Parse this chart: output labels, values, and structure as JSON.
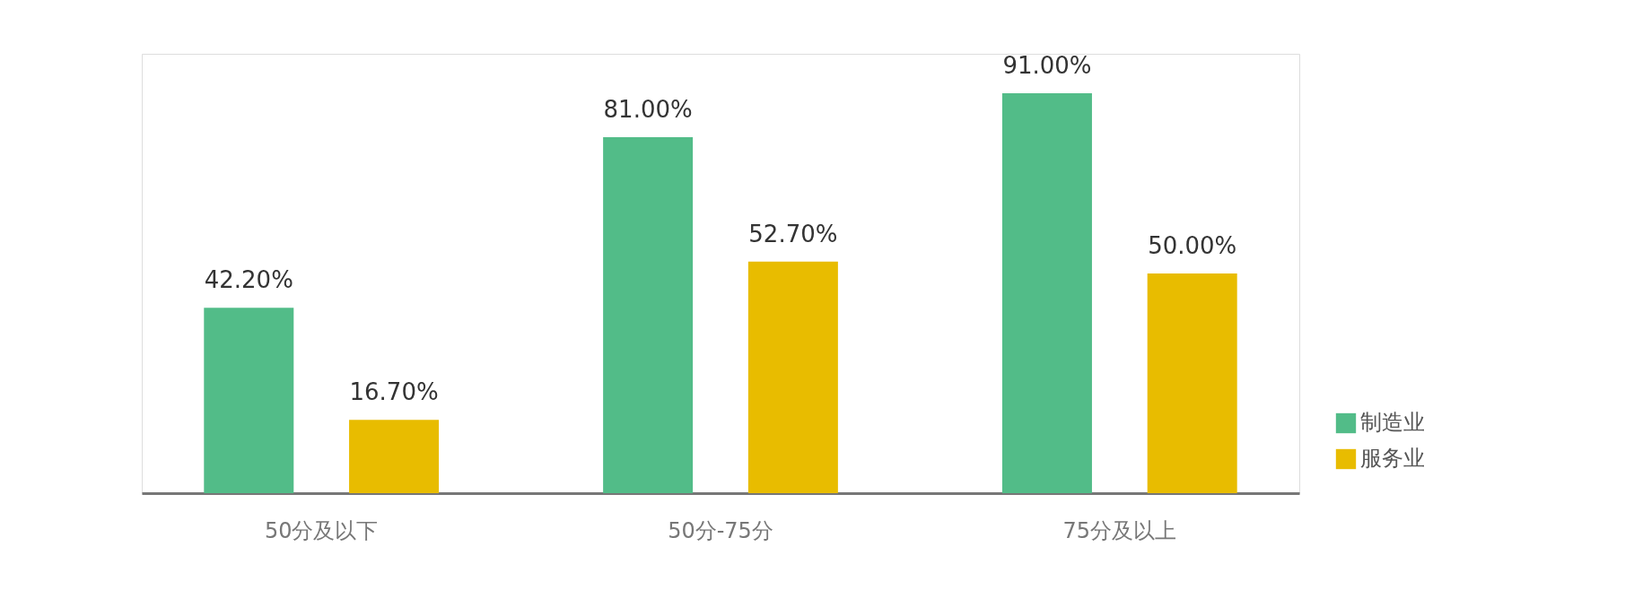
{
  "chart_data": {
    "type": "bar",
    "categories": [
      "50分及以下",
      "50分-75分",
      "75分及以上"
    ],
    "series": [
      {
        "name": "制造业",
        "color": "#52bc88",
        "values": [
          42.2,
          81.0,
          91.0
        ],
        "value_labels": [
          "42.20%",
          "81.00%",
          "91.00%"
        ]
      },
      {
        "name": "服务业",
        "color": "#e8bc00",
        "values": [
          16.7,
          52.7,
          50.0
        ],
        "value_labels": [
          "16.70%",
          "52.70%",
          "50.00%"
        ]
      }
    ],
    "legend": "bottom right",
    "grid": false
  }
}
